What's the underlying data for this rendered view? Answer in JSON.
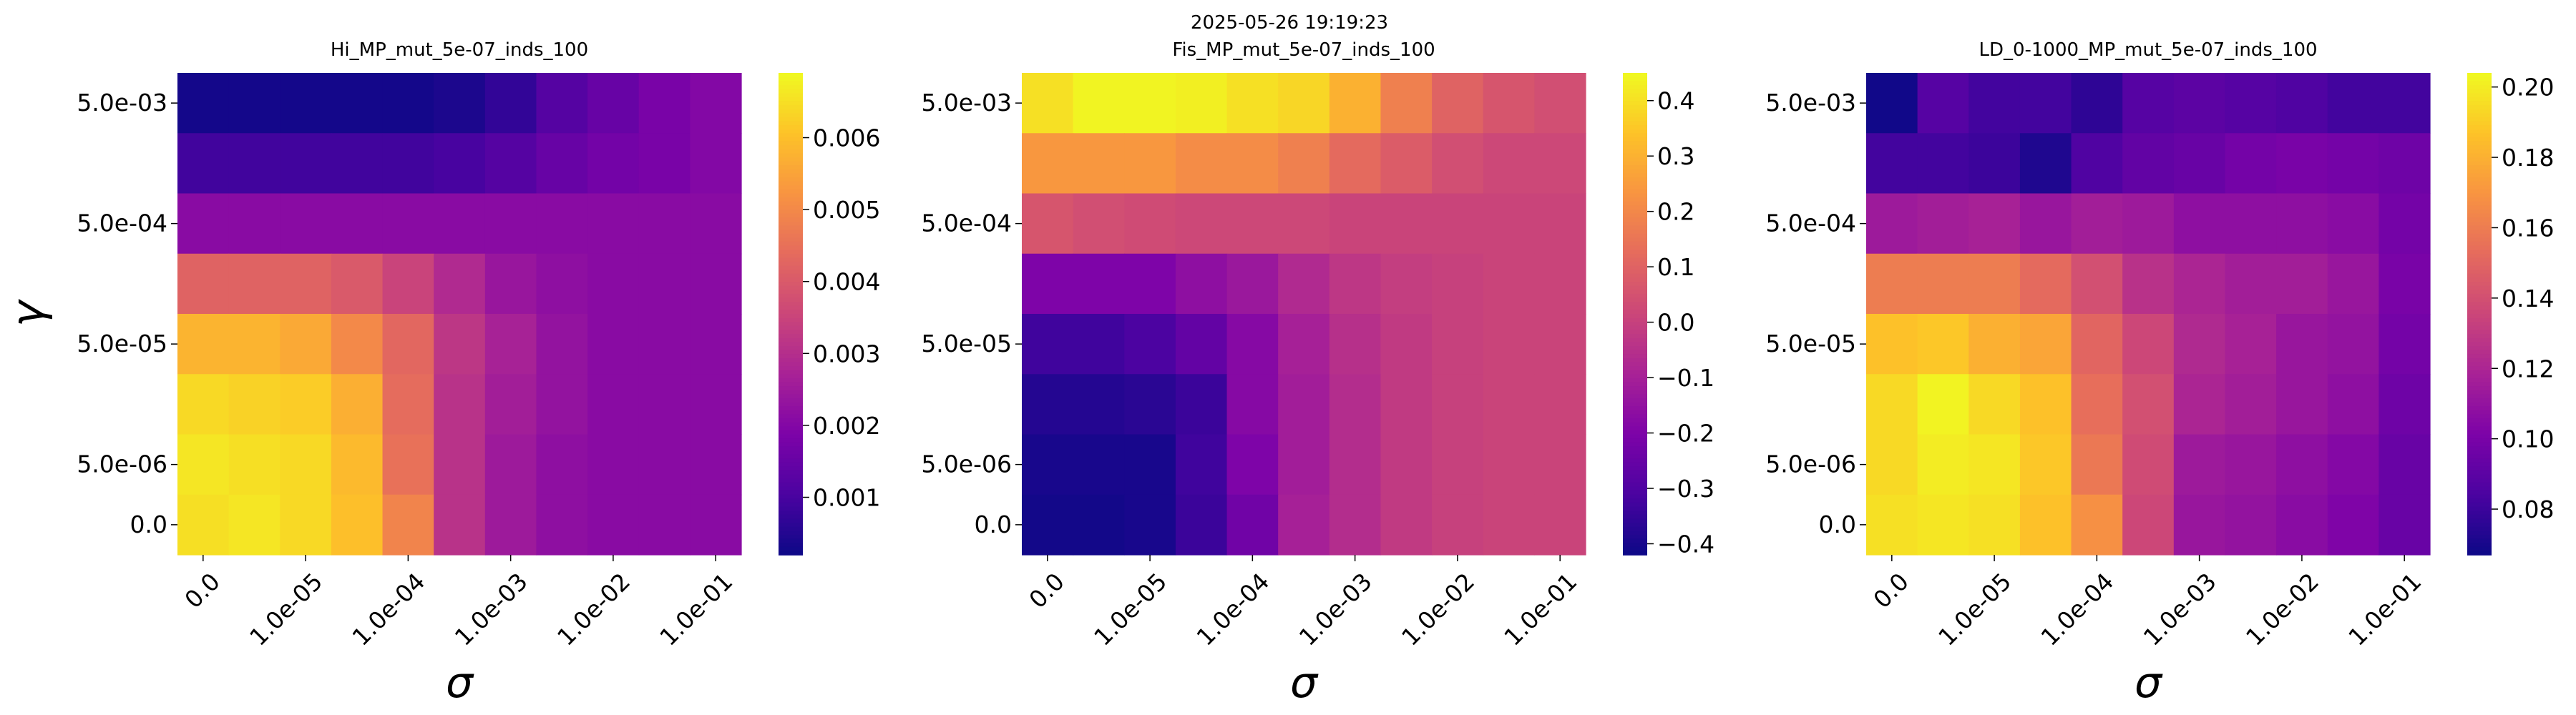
{
  "suptitle": "2025-05-26 19:19:23",
  "colorscale": "plasma",
  "chart_data": [
    {
      "type": "heatmap",
      "title": "Hi_MP_mut_5e-07_inds_100",
      "xlabel": "σ",
      "ylabel": "γ",
      "x_tick_labels": [
        "0.0",
        "1.0e-05",
        "1.0e-04",
        "1.0e-03",
        "1.0e-02",
        "1.0e-01"
      ],
      "y_tick_labels": [
        "5.0e-03",
        "5.0e-04",
        "5.0e-05",
        "5.0e-06",
        "0.0"
      ],
      "colorbar_range": [
        0.0002,
        0.0069
      ],
      "colorbar_ticks": [
        "0.001",
        "0.002",
        "0.003",
        "0.004",
        "0.005",
        "0.006"
      ],
      "colorbar_tick_values": [
        0.001,
        0.002,
        0.003,
        0.004,
        0.005,
        0.006
      ],
      "values": [
        [
          0.0003,
          0.0003,
          0.0003,
          0.0003,
          0.0003,
          0.0004,
          0.0007,
          0.0012,
          0.0015,
          0.0018,
          0.002
        ],
        [
          0.0009,
          0.0009,
          0.0009,
          0.0009,
          0.0009,
          0.001,
          0.0012,
          0.0015,
          0.0017,
          0.0018,
          0.002
        ],
        [
          0.0021,
          0.0021,
          0.0021,
          0.0021,
          0.0021,
          0.0021,
          0.0021,
          0.0021,
          0.0021,
          0.0021,
          0.0021
        ],
        [
          0.0042,
          0.0042,
          0.0042,
          0.004,
          0.0035,
          0.0029,
          0.0024,
          0.0022,
          0.0021,
          0.0021,
          0.0021
        ],
        [
          0.0058,
          0.0058,
          0.0056,
          0.005,
          0.0043,
          0.0032,
          0.0027,
          0.0023,
          0.0021,
          0.0021,
          0.0021
        ],
        [
          0.0064,
          0.0063,
          0.0062,
          0.0057,
          0.0044,
          0.0031,
          0.0026,
          0.0023,
          0.0021,
          0.0021,
          0.0021
        ],
        [
          0.0066,
          0.0065,
          0.0064,
          0.0059,
          0.0045,
          0.0031,
          0.0025,
          0.0022,
          0.0021,
          0.0021,
          0.0021
        ],
        [
          0.0065,
          0.0066,
          0.0064,
          0.006,
          0.0049,
          0.0031,
          0.0025,
          0.0022,
          0.0021,
          0.0021,
          0.0021
        ]
      ]
    },
    {
      "type": "heatmap",
      "title": "Fis_MP_mut_5e-07_inds_100",
      "xlabel": "σ",
      "ylabel": "",
      "x_tick_labels": [
        "0.0",
        "1.0e-05",
        "1.0e-04",
        "1.0e-03",
        "1.0e-02",
        "1.0e-01"
      ],
      "y_tick_labels": [
        "5.0e-03",
        "5.0e-04",
        "5.0e-05",
        "5.0e-06",
        "0.0"
      ],
      "colorbar_range": [
        -0.42,
        0.45
      ],
      "colorbar_ticks": [
        "0.4",
        "0.3",
        "0.2",
        "0.1",
        "0.0",
        "−0.1",
        "−0.2",
        "−0.3",
        "−0.4"
      ],
      "colorbar_tick_values": [
        0.4,
        0.3,
        0.2,
        0.1,
        0.0,
        -0.1,
        -0.2,
        -0.3,
        -0.4
      ],
      "values": [
        [
          0.4,
          0.44,
          0.44,
          0.43,
          0.4,
          0.38,
          0.3,
          0.18,
          0.1,
          0.06,
          0.04
        ],
        [
          0.24,
          0.24,
          0.24,
          0.21,
          0.21,
          0.18,
          0.12,
          0.08,
          0.04,
          0.02,
          0.02
        ],
        [
          0.06,
          0.04,
          0.03,
          0.02,
          0.02,
          0.02,
          0.01,
          0.01,
          0.01,
          0.01,
          0.01
        ],
        [
          -0.2,
          -0.2,
          -0.2,
          -0.16,
          -0.13,
          -0.07,
          -0.03,
          -0.01,
          0.0,
          0.01,
          0.01
        ],
        [
          -0.33,
          -0.33,
          -0.31,
          -0.26,
          -0.18,
          -0.1,
          -0.05,
          -0.02,
          0.0,
          0.01,
          0.01
        ],
        [
          -0.38,
          -0.38,
          -0.37,
          -0.34,
          -0.18,
          -0.11,
          -0.06,
          -0.02,
          0.0,
          0.01,
          0.01
        ],
        [
          -0.4,
          -0.4,
          -0.4,
          -0.33,
          -0.2,
          -0.11,
          -0.06,
          -0.02,
          0.0,
          0.01,
          0.01
        ],
        [
          -0.41,
          -0.41,
          -0.4,
          -0.34,
          -0.23,
          -0.1,
          -0.06,
          -0.02,
          0.0,
          0.01,
          0.01
        ]
      ]
    },
    {
      "type": "heatmap",
      "title": "LD_0-1000_MP_mut_5e-07_inds_100",
      "xlabel": "σ",
      "ylabel": "",
      "x_tick_labels": [
        "0.0",
        "1.0e-05",
        "1.0e-04",
        "1.0e-03",
        "1.0e-02",
        "1.0e-01"
      ],
      "y_tick_labels": [
        "5.0e-03",
        "5.0e-04",
        "5.0e-05",
        "5.0e-06",
        "0.0"
      ],
      "colorbar_range": [
        0.067,
        0.204
      ],
      "colorbar_ticks": [
        "0.20",
        "0.18",
        "0.16",
        "0.14",
        "0.12",
        "0.10",
        "0.08"
      ],
      "colorbar_tick_values": [
        0.2,
        0.18,
        0.16,
        0.14,
        0.12,
        0.1,
        0.08
      ],
      "values": [
        [
          0.068,
          0.088,
          0.082,
          0.082,
          0.076,
          0.088,
          0.09,
          0.088,
          0.086,
          0.082,
          0.082
        ],
        [
          0.082,
          0.082,
          0.08,
          0.072,
          0.086,
          0.092,
          0.094,
          0.098,
          0.1,
          0.098,
          0.096
        ],
        [
          0.114,
          0.116,
          0.118,
          0.112,
          0.116,
          0.114,
          0.108,
          0.108,
          0.108,
          0.106,
          0.098
        ],
        [
          0.16,
          0.16,
          0.16,
          0.152,
          0.14,
          0.126,
          0.12,
          0.116,
          0.116,
          0.112,
          0.1
        ],
        [
          0.186,
          0.188,
          0.18,
          0.176,
          0.15,
          0.136,
          0.122,
          0.118,
          0.112,
          0.11,
          0.098
        ],
        [
          0.194,
          0.202,
          0.194,
          0.186,
          0.154,
          0.14,
          0.12,
          0.116,
          0.112,
          0.108,
          0.096
        ],
        [
          0.194,
          0.2,
          0.198,
          0.188,
          0.158,
          0.138,
          0.114,
          0.112,
          0.108,
          0.104,
          0.094
        ],
        [
          0.196,
          0.198,
          0.196,
          0.186,
          0.168,
          0.136,
          0.112,
          0.11,
          0.106,
          0.102,
          0.094
        ]
      ]
    }
  ]
}
